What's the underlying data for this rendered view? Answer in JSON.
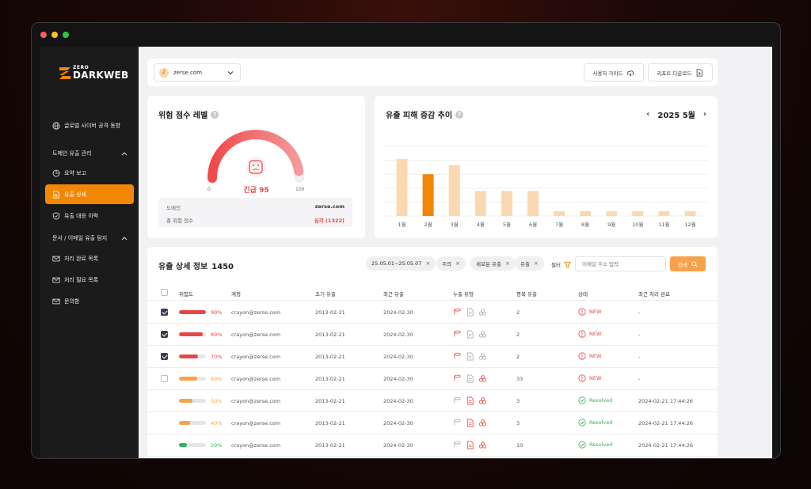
{
  "brand": {
    "zero": "ZERO",
    "darkweb": "DARKWEB"
  },
  "sidebar": {
    "global": "글로벌 사이버 공격 동향",
    "section1": "도메인 유출 관리",
    "items1": [
      "요약 보고",
      "유출 상세",
      "유출 대응 이력"
    ],
    "section2": "문서 / 이메일 유출 탐지",
    "items2": [
      "처리 완료 목록",
      "처리 필요 목록",
      "문의함"
    ],
    "active": "유출 상세"
  },
  "topbar": {
    "domain_badge": "Z",
    "domain": "zerse.com",
    "guide_btn": "사용자 가이드",
    "report_btn": "리포트 다운로드"
  },
  "risk": {
    "title": "위험 점수 레벨",
    "help": "?",
    "min": "0",
    "max": "100",
    "value_text": "긴급 95",
    "value": 95,
    "domain_label": "도메인",
    "domain_value": "zerse.com",
    "total_label": "총 위험 점수",
    "total_value": "심각 (1322)"
  },
  "trend": {
    "title": "유출 피해 증감 추이",
    "help": "?",
    "prev": "‹",
    "next": "›",
    "period": "2025 5월"
  },
  "chart_data": {
    "type": "bar",
    "categories": [
      "1월",
      "2월",
      "3월",
      "4월",
      "5월",
      "6월",
      "7월",
      "8월",
      "9월",
      "10월",
      "11월",
      "12월"
    ],
    "values": [
      82,
      60,
      73,
      36,
      36,
      36,
      7,
      7,
      7,
      7,
      7,
      7
    ],
    "highlight": "2월",
    "ylim": [
      0,
      100
    ],
    "grid": true,
    "colors": {
      "bar": "#fbd9b0",
      "highlight": "#f28705"
    }
  },
  "table": {
    "title": "유출 상세 정보",
    "count": "1450",
    "chips": [
      "25.05.01~25.05.07",
      "주의",
      "새로운 유출",
      "유출"
    ],
    "chip_close": "×",
    "filter_label": "필터",
    "email_placeholder": "이메일 주소 입력",
    "search_btn": "검색",
    "headers": [
      "위험도",
      "계정",
      "초기 유출",
      "최근 유출",
      "누출 유형",
      "중복 유출",
      "상태",
      "최근 처리 완료"
    ],
    "rows": [
      {
        "checkbox": "checked",
        "risk": 99,
        "pct": "99%",
        "color": "#e84646",
        "account": "crayon@zerse.com",
        "first": "2013-02-21",
        "recent": "2024-02-30",
        "dup": "2",
        "status": "NEW",
        "done": "-"
      },
      {
        "checkbox": "checked",
        "risk": 89,
        "pct": "89%",
        "color": "#e84646",
        "account": "crayon@zerse.com",
        "first": "2013-02-21",
        "recent": "2024-02-30",
        "dup": "2",
        "status": "NEW",
        "done": "-"
      },
      {
        "checkbox": "checked",
        "risk": 70,
        "pct": "70%",
        "color": "#e84646",
        "account": "crayon@zerse.com",
        "first": "2013-02-21",
        "recent": "2024-02-30",
        "dup": "2",
        "status": "NEW",
        "done": "-"
      },
      {
        "checkbox": "unchecked",
        "risk": 69,
        "pct": "69%",
        "color": "#f7a24b",
        "account": "crayon@zerse.com",
        "first": "2013-02-21",
        "recent": "2024-02-30",
        "dup": "33",
        "status": "NEW",
        "done": "-"
      },
      {
        "checkbox": "none",
        "risk": 50,
        "pct": "50%",
        "color": "#f7a24b",
        "account": "crayon@zerse.com",
        "first": "2013-02-21",
        "recent": "2024-02-30",
        "dup": "3",
        "status": "Resolved",
        "done": "2024-02-21 17:44:26"
      },
      {
        "checkbox": "none",
        "risk": 40,
        "pct": "40%",
        "color": "#f7a24b",
        "account": "crayon@zerse.com",
        "first": "2013-02-21",
        "recent": "2024-02-30",
        "dup": "3",
        "status": "Resolved",
        "done": "2024-02-21 17:44:26"
      },
      {
        "checkbox": "none",
        "risk": 29,
        "pct": "29%",
        "color": "#34b35a",
        "account": "crayon@zerse.com",
        "first": "2013-02-21",
        "recent": "2024-02-30",
        "dup": "10",
        "status": "Resolved",
        "done": "2024-02-21 17:44:26"
      }
    ]
  },
  "colors": {
    "accent": "#f28705",
    "danger": "#e84646",
    "success": "#34b35a"
  }
}
